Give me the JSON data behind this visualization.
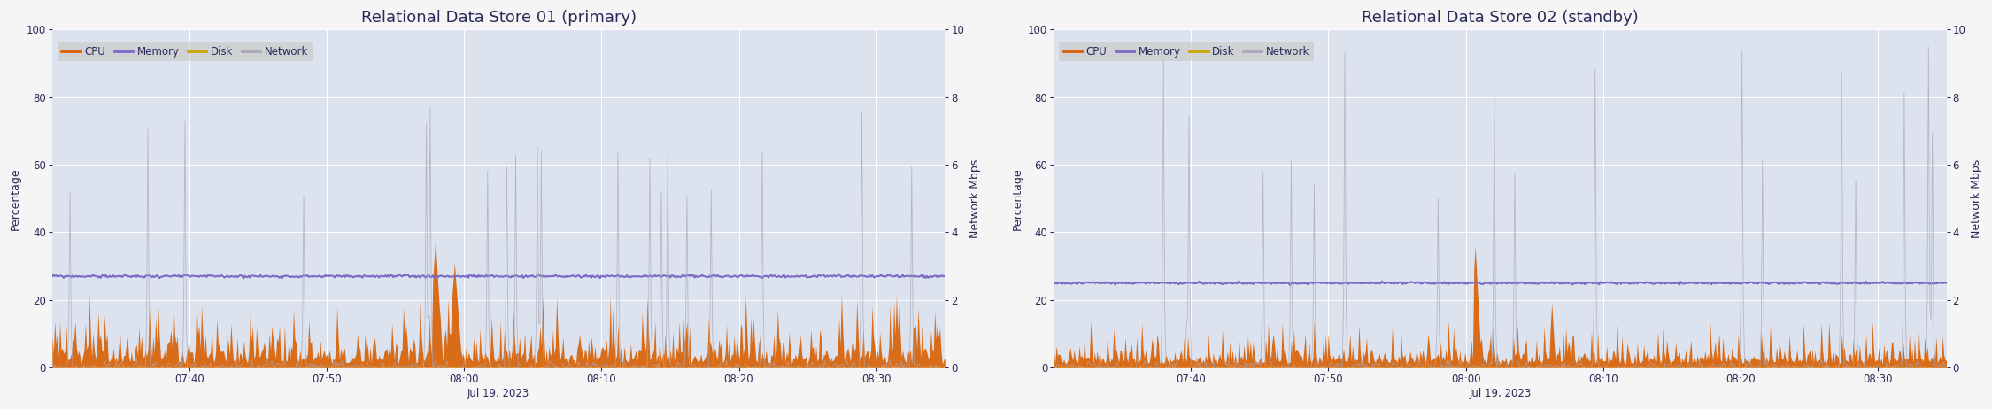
{
  "title1": "Relational Data Store 01 (primary)",
  "title2": "Relational Data Store 02 (standby)",
  "ylabel_left": "Percentage",
  "ylabel_right": "Network Mbps",
  "xlabel": "Jul 19, 2023",
  "ylim_left": [
    0,
    100
  ],
  "ylim_right": [
    0,
    10
  ],
  "yticks_left": [
    0,
    20,
    40,
    60,
    80,
    100
  ],
  "yticks_right": [
    0,
    2,
    4,
    6,
    8,
    10
  ],
  "xtick_labels": [
    "07:40",
    "07:50",
    "08:00",
    "08:10",
    "08:20",
    "08:30"
  ],
  "colors": {
    "cpu": "#d95f02",
    "memory": "#7b68c8",
    "disk": "#c8a800",
    "network": "#a8a8b8",
    "background": "#dce3ef",
    "fig_bg": "#f5f5f5",
    "legend_bg": "#c8c8c8",
    "text": "#2a2a5a",
    "grid": "#ffffff"
  },
  "legend_labels": [
    "CPU",
    "Memory",
    "Disk",
    "Network"
  ],
  "memory1_level": 27.0,
  "memory2_level": 25.0,
  "title_fontsize": 13,
  "label_fontsize": 9,
  "tick_fontsize": 8.5,
  "legend_fontsize": 8.5,
  "figsize": [
    22.5,
    4.62
  ],
  "dpi": 100
}
